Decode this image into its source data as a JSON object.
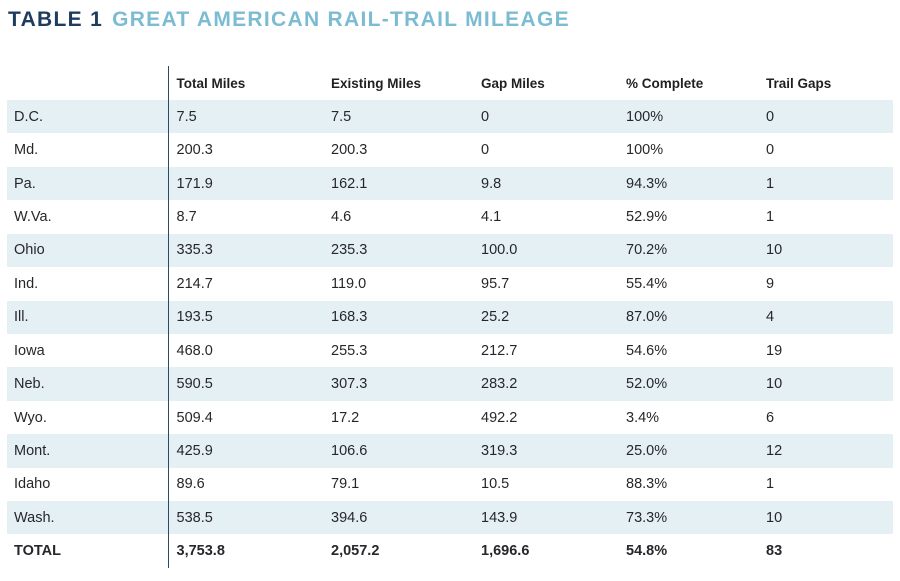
{
  "colors": {
    "kicker_navy": "#1f3c5e",
    "title_blue": "#7cbcd3",
    "row_shade_blue": "#e4f0f4",
    "divider_navy": "#2c4a68",
    "text": "#27272b"
  },
  "chart_data": {
    "type": "table",
    "kicker": "TABLE 1",
    "title": "GREAT AMERICAN RAIL-TRAIL MILEAGE",
    "columns": [
      "Total Miles",
      "Existing Miles",
      "Gap Miles",
      "% Complete",
      "Trail Gaps"
    ],
    "rows": [
      {
        "label": "D.C.",
        "values": [
          "7.5",
          "7.5",
          "0",
          "100%",
          "0"
        ]
      },
      {
        "label": "Md.",
        "values": [
          "200.3",
          "200.3",
          "0",
          "100%",
          "0"
        ]
      },
      {
        "label": "Pa.",
        "values": [
          "171.9",
          "162.1",
          "9.8",
          "94.3%",
          "1"
        ]
      },
      {
        "label": "W.Va.",
        "values": [
          "8.7",
          "4.6",
          "4.1",
          "52.9%",
          "1"
        ]
      },
      {
        "label": "Ohio",
        "values": [
          "335.3",
          "235.3",
          "100.0",
          "70.2%",
          "10"
        ]
      },
      {
        "label": "Ind.",
        "values": [
          "214.7",
          "119.0",
          "95.7",
          "55.4%",
          "9"
        ]
      },
      {
        "label": "Ill.",
        "values": [
          "193.5",
          "168.3",
          "25.2",
          "87.0%",
          "4"
        ]
      },
      {
        "label": "Iowa",
        "values": [
          "468.0",
          "255.3",
          "212.7",
          "54.6%",
          "19"
        ]
      },
      {
        "label": "Neb.",
        "values": [
          "590.5",
          "307.3",
          "283.2",
          "52.0%",
          "10"
        ]
      },
      {
        "label": "Wyo.",
        "values": [
          "509.4",
          "17.2",
          "492.2",
          "3.4%",
          "6"
        ]
      },
      {
        "label": "Mont.",
        "values": [
          "425.9",
          "106.6",
          "319.3",
          "25.0%",
          "12"
        ]
      },
      {
        "label": "Idaho",
        "values": [
          "89.6",
          "79.1",
          "10.5",
          "88.3%",
          "1"
        ]
      },
      {
        "label": "Wash.",
        "values": [
          "538.5",
          "394.6",
          "143.9",
          "73.3%",
          "10"
        ]
      }
    ],
    "total_row": {
      "label": "TOTAL",
      "values": [
        "3,753.8",
        "2,057.2",
        "1,696.6",
        "54.8%",
        "83"
      ]
    }
  }
}
